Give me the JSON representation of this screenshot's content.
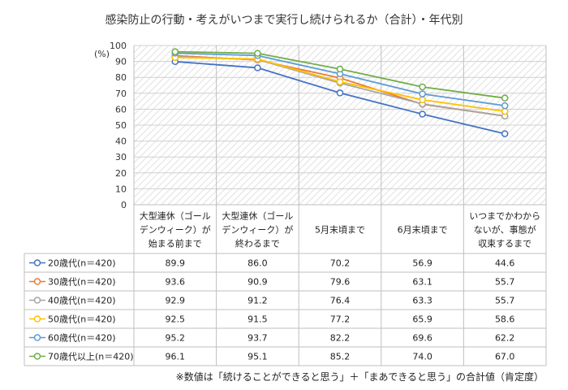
{
  "chart_data": {
    "type": "line",
    "title": "感染防止の行動・考えがいつまで実行し続けられるか（合計）・年代別",
    "ylabel": "(%)",
    "ylim": [
      0,
      100
    ],
    "yticks": [
      "0",
      "10",
      "20",
      "30",
      "40",
      "50",
      "60",
      "70",
      "80",
      "90",
      "100"
    ],
    "categories": [
      [
        "大型連休（ゴール",
        "デンウィーク）が",
        "始まる前まで"
      ],
      [
        "大型連休（ゴール",
        "デンウィーク）が",
        "終わるまで"
      ],
      [
        "5月末頃まで"
      ],
      [
        "6月末頃まで"
      ],
      [
        "いつまでかわから",
        "ないが、事態が",
        "収束するまで"
      ]
    ],
    "series": [
      {
        "name": "20歳代(n＝420)",
        "color": "#4472c4",
        "values": [
          89.9,
          86.0,
          70.2,
          56.9,
          44.6
        ],
        "labels": [
          "89.9",
          "86.0",
          "70.2",
          "56.9",
          "44.6"
        ]
      },
      {
        "name": "30歳代(n＝420)",
        "color": "#ed7d31",
        "values": [
          93.6,
          90.9,
          79.6,
          63.1,
          55.7
        ],
        "labels": [
          "93.6",
          "90.9",
          "79.6",
          "63.1",
          "55.7"
        ]
      },
      {
        "name": "40歳代(n＝420)",
        "color": "#a5a5a5",
        "values": [
          92.9,
          91.2,
          76.4,
          63.3,
          55.7
        ],
        "labels": [
          "92.9",
          "91.2",
          "76.4",
          "63.3",
          "55.7"
        ]
      },
      {
        "name": "50歳代(n＝420)",
        "color": "#ffc000",
        "values": [
          92.5,
          91.5,
          77.2,
          65.9,
          58.6
        ],
        "labels": [
          "92.5",
          "91.5",
          "77.2",
          "65.9",
          "58.6"
        ]
      },
      {
        "name": "60歳代(n＝420)",
        "color": "#5b9bd5",
        "values": [
          95.2,
          93.7,
          82.2,
          69.6,
          62.2
        ],
        "labels": [
          "95.2",
          "93.7",
          "82.2",
          "69.6",
          "62.2"
        ]
      },
      {
        "name": "70歳代以上(n＝420)",
        "color": "#70ad47",
        "values": [
          96.1,
          95.1,
          85.2,
          74.0,
          67.0
        ],
        "labels": [
          "96.1",
          "95.1",
          "85.2",
          "74.0",
          "67.0"
        ]
      }
    ],
    "footnote": "※数値は「続けることができると思う」＋「まあできると思う」の合計値（肯定度）"
  }
}
